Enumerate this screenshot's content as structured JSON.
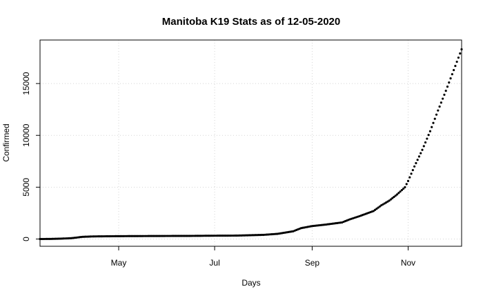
{
  "chart_data": {
    "type": "scatter",
    "title": "Manitoba K19 Stats as of 12-05-2020",
    "xlabel": "Days",
    "ylabel": "Confirmed",
    "x_tick_labels": [
      "May",
      "Jul",
      "Sep",
      "Nov"
    ],
    "x_tick_dates": [
      "2020-05-01",
      "2020-07-01",
      "2020-09-01",
      "2020-11-01"
    ],
    "y_ticks": [
      0,
      5000,
      10000,
      15000
    ],
    "x_range": [
      "2020-03-12",
      "2020-12-05"
    ],
    "y_range": [
      -700,
      19200
    ],
    "grid": true,
    "marker_color": "#000000",
    "grid_color": "#d3d3d3",
    "series": [
      {
        "x": [
          "2020-03-12",
          "2020-03-19",
          "2020-03-26",
          "2020-04-01",
          "2020-04-08",
          "2020-04-15",
          "2020-04-22",
          "2020-05-01",
          "2020-05-15",
          "2020-06-01",
          "2020-06-15",
          "2020-07-01",
          "2020-07-15",
          "2020-08-01",
          "2020-08-10",
          "2020-08-20",
          "2020-08-25",
          "2020-09-01",
          "2020-09-10",
          "2020-09-20",
          "2020-09-25",
          "2020-10-01",
          "2020-10-10",
          "2020-10-15",
          "2020-10-20",
          "2020-10-25",
          "2020-10-30",
          "2020-11-01",
          "2020-11-05",
          "2020-11-10",
          "2020-11-15",
          "2020-11-20",
          "2020-11-25",
          "2020-11-30",
          "2020-12-05"
        ],
        "y": [
          0,
          10,
          40,
          80,
          210,
          250,
          262,
          275,
          285,
          295,
          300,
          320,
          330,
          400,
          500,
          750,
          1050,
          1250,
          1400,
          1600,
          1900,
          2200,
          2700,
          3250,
          3700,
          4300,
          5000,
          5600,
          7000,
          8600,
          10400,
          12400,
          14300,
          16300,
          18300
        ]
      }
    ]
  }
}
